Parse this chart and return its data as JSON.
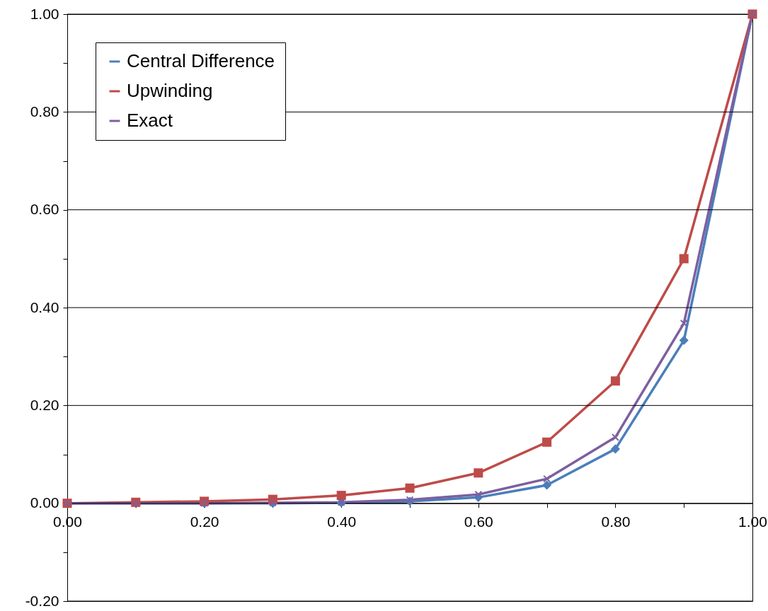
{
  "chart_data": {
    "type": "line",
    "x": [
      0,
      0.1,
      0.2,
      0.3,
      0.4,
      0.5,
      0.6,
      0.7,
      0.8,
      0.9,
      1.0
    ],
    "series": [
      {
        "name": "Central Difference",
        "color": "#4a7ebb",
        "marker": "diamond",
        "values": [
          0,
          0,
          0,
          0,
          0.001,
          0.004,
          0.012,
          0.037,
          0.111,
          0.333,
          1.0
        ]
      },
      {
        "name": "Upwinding",
        "color": "#be4b48",
        "marker": "square",
        "values": [
          0,
          0.002,
          0.004,
          0.008,
          0.016,
          0.031,
          0.062,
          0.125,
          0.25,
          0.5,
          1.0
        ]
      },
      {
        "name": "Exact",
        "color": "#7d5fa0",
        "marker": "cross",
        "values": [
          0,
          0,
          0,
          0.001,
          0.002,
          0.007,
          0.018,
          0.05,
          0.135,
          0.368,
          1.0
        ]
      }
    ],
    "xlim": [
      0,
      1
    ],
    "xticks": [
      {
        "value": 0,
        "label": "0.00"
      },
      {
        "value": 0.1,
        "label": null
      },
      {
        "value": 0.2,
        "label": "0.20"
      },
      {
        "value": 0.3,
        "label": null
      },
      {
        "value": 0.4,
        "label": "0.40"
      },
      {
        "value": 0.5,
        "label": null
      },
      {
        "value": 0.6,
        "label": "0.60"
      },
      {
        "value": 0.7,
        "label": null
      },
      {
        "value": 0.8,
        "label": "0.80"
      },
      {
        "value": 0.9,
        "label": null
      },
      {
        "value": 1,
        "label": "1.00"
      }
    ],
    "ylim": [
      -0.2,
      1
    ],
    "yticks": [
      {
        "value": -0.2,
        "label": "-0.20"
      },
      {
        "value": 0,
        "label": "0.00"
      },
      {
        "value": 0.2,
        "label": "0.20"
      },
      {
        "value": 0.4,
        "label": "0.40"
      },
      {
        "value": 0.6,
        "label": "0.60"
      },
      {
        "value": 0.8,
        "label": "0.80"
      },
      {
        "value": 1,
        "label": "1.00"
      }
    ],
    "grid": "y",
    "legend": "top left",
    "line_style": "solid"
  }
}
